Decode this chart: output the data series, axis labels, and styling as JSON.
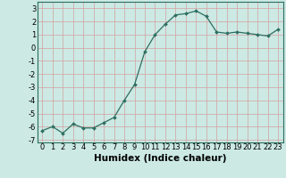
{
  "x": [
    0,
    1,
    2,
    3,
    4,
    5,
    6,
    7,
    8,
    9,
    10,
    11,
    12,
    13,
    14,
    15,
    16,
    17,
    18,
    19,
    20,
    21,
    22,
    23
  ],
  "y": [
    -6.3,
    -6.0,
    -6.5,
    -5.8,
    -6.1,
    -6.1,
    -5.7,
    -5.3,
    -4.0,
    -2.8,
    -0.3,
    1.0,
    1.8,
    2.5,
    2.6,
    2.8,
    2.4,
    1.2,
    1.1,
    1.2,
    1.1,
    1.0,
    0.9,
    1.4
  ],
  "title": "",
  "xlabel": "Humidex (Indice chaleur)",
  "ylabel": "",
  "xlim": [
    -0.5,
    23.5
  ],
  "ylim": [
    -7.2,
    3.5
  ],
  "yticks": [
    -7,
    -6,
    -5,
    -4,
    -3,
    -2,
    -1,
    0,
    1,
    2,
    3
  ],
  "xticks": [
    0,
    1,
    2,
    3,
    4,
    5,
    6,
    7,
    8,
    9,
    10,
    11,
    12,
    13,
    14,
    15,
    16,
    17,
    18,
    19,
    20,
    21,
    22,
    23
  ],
  "line_color": "#2d6e60",
  "marker": "D",
  "markersize": 2.0,
  "bg_color": "#cce9e4",
  "grid_color": "#d4a0a0",
  "axis_fontsize": 6.5,
  "tick_fontsize": 6.0,
  "xlabel_fontsize": 7.5
}
